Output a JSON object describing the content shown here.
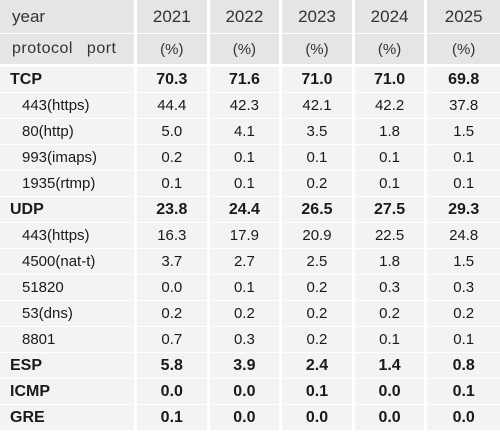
{
  "header": {
    "year_label": "year",
    "years": [
      "2021",
      "2022",
      "2023",
      "2024",
      "2025"
    ],
    "protocol_label": "protocol",
    "port_label": "port",
    "unit": "(%)"
  },
  "rows": [
    {
      "kind": "protocol",
      "label": "TCP",
      "values": [
        "70.3",
        "71.6",
        "71.0",
        "71.0",
        "69.8"
      ]
    },
    {
      "kind": "port",
      "label": "443(https)",
      "values": [
        "44.4",
        "42.3",
        "42.1",
        "42.2",
        "37.8"
      ]
    },
    {
      "kind": "port",
      "label": "80(http)",
      "values": [
        "5.0",
        "4.1",
        "3.5",
        "1.8",
        "1.5"
      ]
    },
    {
      "kind": "port",
      "label": "993(imaps)",
      "values": [
        "0.2",
        "0.1",
        "0.1",
        "0.1",
        "0.1"
      ]
    },
    {
      "kind": "port",
      "label": "1935(rtmp)",
      "values": [
        "0.1",
        "0.1",
        "0.2",
        "0.1",
        "0.1"
      ]
    },
    {
      "kind": "protocol",
      "label": "UDP",
      "values": [
        "23.8",
        "24.4",
        "26.5",
        "27.5",
        "29.3"
      ]
    },
    {
      "kind": "port",
      "label": "443(https)",
      "values": [
        "16.3",
        "17.9",
        "20.9",
        "22.5",
        "24.8"
      ]
    },
    {
      "kind": "port",
      "label": "4500(nat-t)",
      "values": [
        "3.7",
        "2.7",
        "2.5",
        "1.8",
        "1.5"
      ]
    },
    {
      "kind": "port",
      "label": "51820",
      "values": [
        "0.0",
        "0.1",
        "0.2",
        "0.3",
        "0.3"
      ]
    },
    {
      "kind": "port",
      "label": "53(dns)",
      "values": [
        "0.2",
        "0.2",
        "0.2",
        "0.2",
        "0.2"
      ]
    },
    {
      "kind": "port",
      "label": "8801",
      "values": [
        "0.7",
        "0.3",
        "0.2",
        "0.1",
        "0.1"
      ]
    },
    {
      "kind": "protocol",
      "label": "ESP",
      "values": [
        "5.8",
        "3.9",
        "2.4",
        "1.4",
        "0.8"
      ]
    },
    {
      "kind": "protocol",
      "label": "ICMP",
      "values": [
        "0.0",
        "0.0",
        "0.1",
        "0.0",
        "0.1"
      ]
    },
    {
      "kind": "protocol",
      "label": "GRE",
      "values": [
        "0.1",
        "0.0",
        "0.0",
        "0.0",
        "0.0"
      ]
    }
  ]
}
